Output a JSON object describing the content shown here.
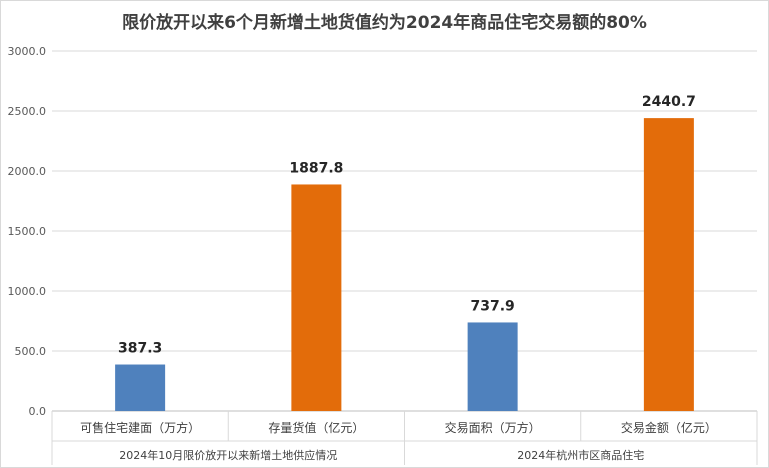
{
  "chart_data": {
    "type": "bar",
    "title": "限价放开以来6个月新增土地货值约为2024年商品住宅交易额的80%",
    "categories": [
      "可售住宅建面（万方）",
      "存量货值（亿元）",
      "交易面积（万方）",
      "交易金额（亿元）"
    ],
    "groups": [
      {
        "label": "2024年10月限价放开以来新增土地供应情况",
        "categories": [
          0,
          1
        ]
      },
      {
        "label": "2024年杭州市区商品住宅",
        "categories": [
          2,
          3
        ]
      }
    ],
    "values": [
      387.3,
      1887.8,
      737.9,
      2440.7
    ],
    "value_labels": [
      "387.3",
      "1887.8",
      "737.9",
      "2440.7"
    ],
    "bar_colors": [
      "#4f81bd",
      "#e36c0a",
      "#4f81bd",
      "#e36c0a"
    ],
    "yticks": [
      "0.0",
      "500.0",
      "1000.0",
      "1500.0",
      "2000.0",
      "2500.0",
      "3000.0"
    ],
    "ylim": [
      0,
      3000
    ],
    "grid": true,
    "legend": "none"
  }
}
